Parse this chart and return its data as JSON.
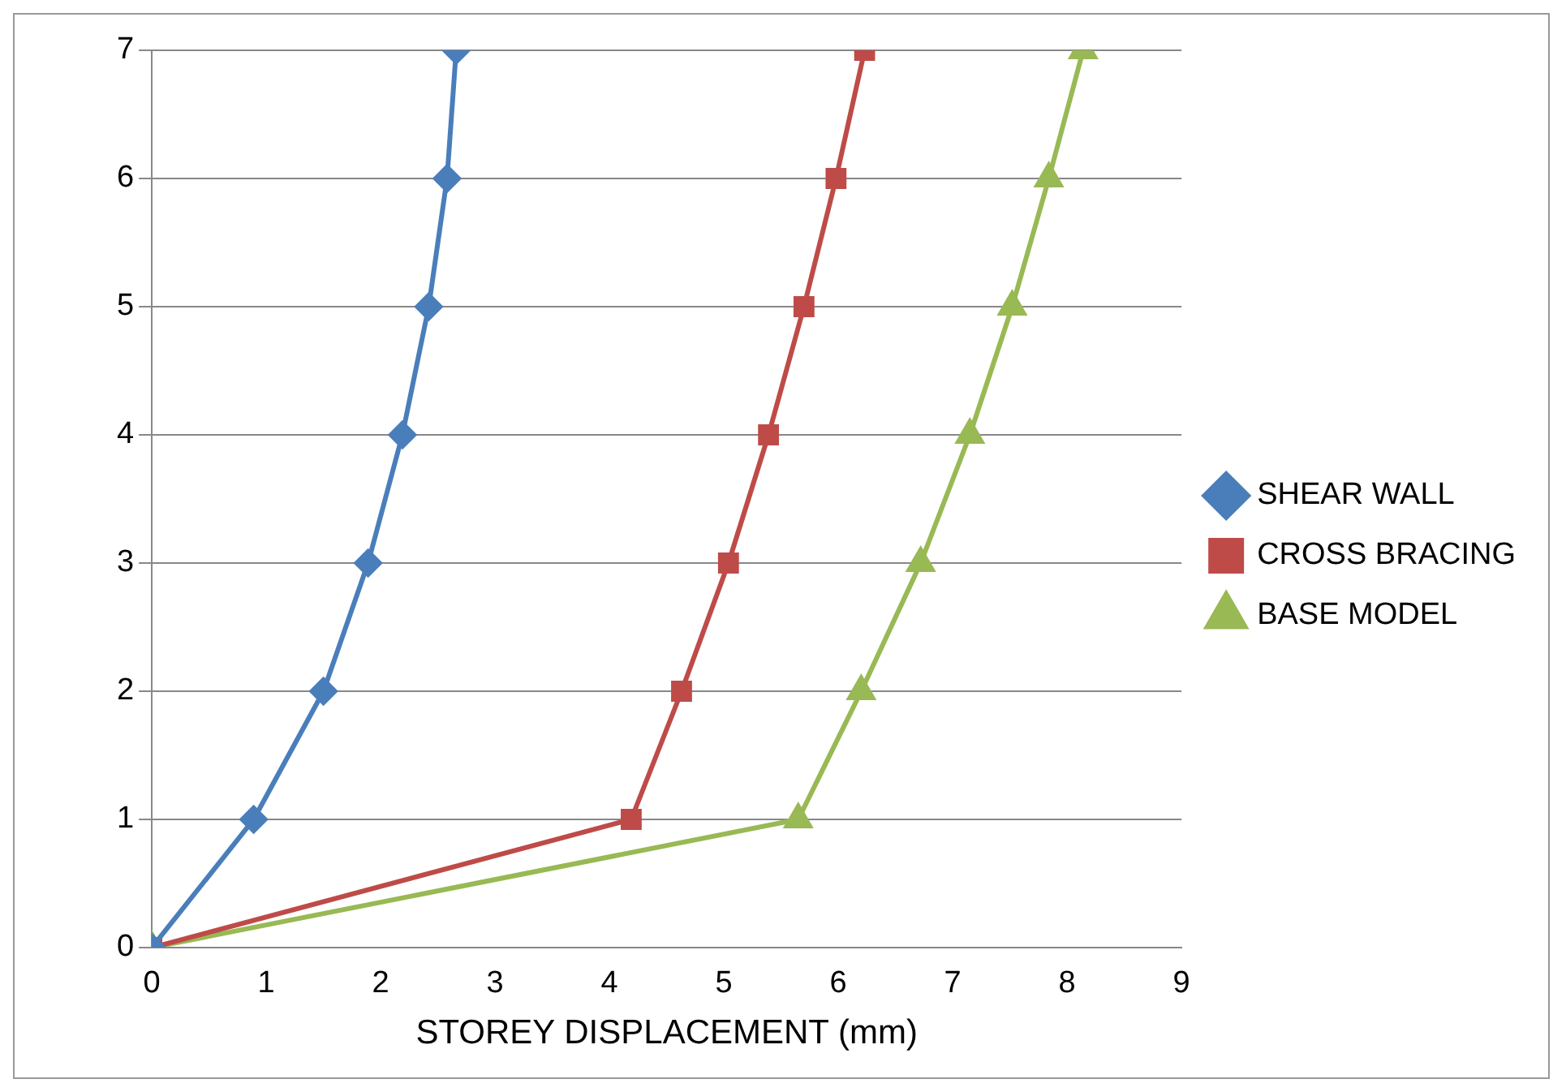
{
  "chart_data": {
    "type": "line",
    "xlabel": "STOREY DISPLACEMENT (mm)",
    "xlim": [
      0,
      9
    ],
    "xticks": [
      0,
      1,
      2,
      3,
      4,
      5,
      6,
      7,
      8,
      9
    ],
    "ylim": [
      0,
      7
    ],
    "yticks": [
      0,
      1,
      2,
      3,
      4,
      5,
      6,
      7
    ],
    "grid": "y",
    "legend": "right",
    "line_style": "solid",
    "series": [
      {
        "name": "SHEAR WALL",
        "color": "#4a7ebb",
        "marker": "diamond",
        "x": [
          0,
          0.89,
          1.5,
          1.89,
          2.19,
          2.42,
          2.58,
          2.66
        ],
        "values": [
          0,
          1,
          2,
          3,
          4,
          5,
          6,
          7
        ]
      },
      {
        "name": "CROSS BRACING",
        "color": "#be4b48",
        "marker": "square",
        "x": [
          0,
          4.19,
          4.63,
          5.04,
          5.39,
          5.7,
          5.98,
          6.23
        ],
        "values": [
          0,
          1,
          2,
          3,
          4,
          5,
          6,
          7
        ]
      },
      {
        "name": "BASE MODEL",
        "color": "#98b954",
        "marker": "triangle",
        "x": [
          0,
          5.65,
          6.2,
          6.72,
          7.15,
          7.52,
          7.84,
          8.14
        ],
        "values": [
          0,
          1,
          2,
          3,
          4,
          5,
          6,
          7
        ]
      }
    ]
  }
}
